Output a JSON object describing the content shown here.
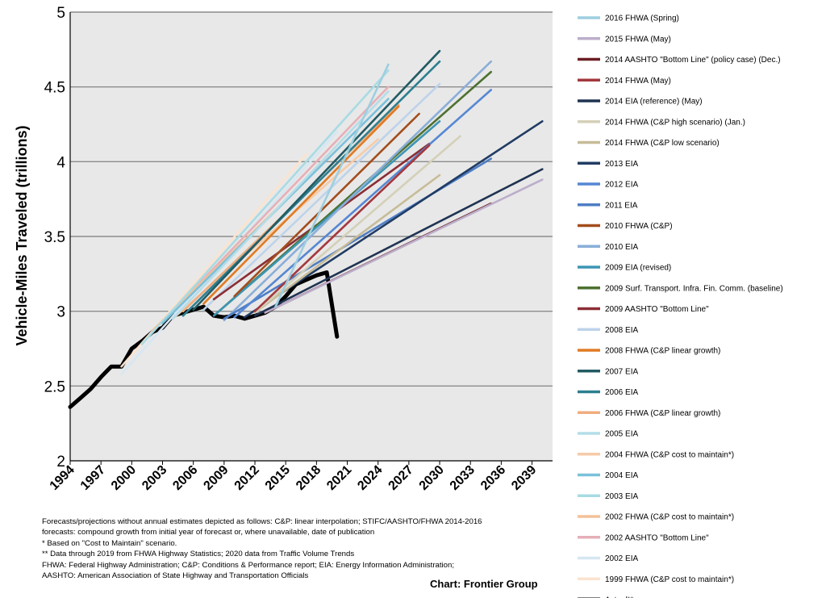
{
  "chart_data": {
    "type": "line",
    "title": "",
    "ylabel": "Vehicle-Miles Traveled (trillions)",
    "xlabel": "",
    "xlim": [
      1994,
      2041
    ],
    "ylim": [
      2,
      5
    ],
    "yticks": [
      "2",
      "2.5",
      "3",
      "3.5",
      "4",
      "4.5",
      "5"
    ],
    "xticks": [
      "1994",
      "1997",
      "2000",
      "2003",
      "2006",
      "2009",
      "2012",
      "2015",
      "2018",
      "2021",
      "2024",
      "2027",
      "2030",
      "2033",
      "2036",
      "2039"
    ],
    "grid": "horizontal",
    "legend_position": "right",
    "series": [
      {
        "name": "2016 FHWA (Spring)",
        "color": "#9dcfe0",
        "x": [
          2014,
          2025
        ],
        "y": [
          3.03,
          4.65
        ]
      },
      {
        "name": "2015 FHWA (May)",
        "color": "#bcaecb",
        "x": [
          2013,
          2040
        ],
        "y": [
          2.99,
          3.88
        ]
      },
      {
        "name": "2014 AASHTO \"Bottom Line\" (policy case) (Dec.)",
        "color": "#6b1e24",
        "x": [
          2013,
          2035
        ],
        "y": [
          2.99,
          3.72
        ]
      },
      {
        "name": "2014 FHWA (May)",
        "color": "#a3383e",
        "x": [
          2012,
          2029
        ],
        "y": [
          3.0,
          4.11
        ]
      },
      {
        "name": "2014 EIA (reference) (May)",
        "color": "#1f3352",
        "x": [
          2012,
          2040
        ],
        "y": [
          2.97,
          3.95
        ]
      },
      {
        "name": "2014 FHWA (C&P high scenario) (Jan.)",
        "color": "#d4d0b8",
        "x": [
          2012,
          2032
        ],
        "y": [
          2.99,
          4.17
        ]
      },
      {
        "name": "2014 FHWA (C&P low scenario)",
        "color": "#c7bc98",
        "x": [
          2012,
          2030
        ],
        "y": [
          2.99,
          3.91
        ]
      },
      {
        "name": "2013 EIA",
        "color": "#213c64",
        "x": [
          2011,
          2040
        ],
        "y": [
          2.96,
          4.27
        ]
      },
      {
        "name": "2012 EIA",
        "color": "#5687d3",
        "x": [
          2010,
          2035
        ],
        "y": [
          2.96,
          4.48
        ]
      },
      {
        "name": "2011 EIA",
        "color": "#4f7ec4",
        "x": [
          2009,
          2035
        ],
        "y": [
          2.95,
          4.02
        ]
      },
      {
        "name": "2010 FHWA (C&P)",
        "color": "#a34d1d",
        "x": [
          2010,
          2028
        ],
        "y": [
          3.1,
          4.32
        ]
      },
      {
        "name": "2010 EIA",
        "color": "#8aaed8",
        "x": [
          2009,
          2035
        ],
        "y": [
          2.94,
          4.67
        ]
      },
      {
        "name": "2009 EIA (revised)",
        "color": "#3d95b4",
        "x": [
          2008,
          2030
        ],
        "y": [
          2.97,
          4.27
        ]
      },
      {
        "name": "2009 Surf. Transport. Infra. Fin. Comm. (baseline)",
        "color": "#4e7130",
        "x": [
          2008,
          2035
        ],
        "y": [
          2.97,
          4.6
        ]
      },
      {
        "name": "2009 AASHTO \"Bottom Line\"",
        "color": "#8b2e35",
        "x": [
          2008,
          2029
        ],
        "y": [
          3.08,
          4.12
        ]
      },
      {
        "name": "2008 EIA",
        "color": "#bdd3ea",
        "x": [
          2007,
          2030
        ],
        "y": [
          3.01,
          4.52
        ]
      },
      {
        "name": "2008 FHWA (C&P linear growth)",
        "color": "#e07b24",
        "x": [
          2007,
          2026
        ],
        "y": [
          3.05,
          4.37
        ]
      },
      {
        "name": "2007 EIA",
        "color": "#235b63",
        "x": [
          2006,
          2030
        ],
        "y": [
          3.01,
          4.74
        ]
      },
      {
        "name": "2006 EIA",
        "color": "#2c7f90",
        "x": [
          2005,
          2030
        ],
        "y": [
          2.97,
          4.67
        ]
      },
      {
        "name": "2006 FHWA (C&P linear growth)",
        "color": "#f0ad80",
        "x": [
          2005,
          2026
        ],
        "y": [
          3.0,
          4.38
        ]
      },
      {
        "name": "2005 EIA",
        "color": "#b4dde8",
        "x": [
          2004,
          2025
        ],
        "y": [
          2.95,
          4.47
        ]
      },
      {
        "name": "2004 FHWA (C&P cost to maintain*)",
        "color": "#f6cba8",
        "x": [
          2004,
          2024
        ],
        "y": [
          2.95,
          4.15
        ]
      },
      {
        "name": "2004 EIA",
        "color": "#7bc0db",
        "x": [
          2003,
          2025
        ],
        "y": [
          2.92,
          4.42
        ]
      },
      {
        "name": "2003 EIA",
        "color": "#a8dbe3",
        "x": [
          2001,
          2025
        ],
        "y": [
          2.78,
          4.61
        ]
      },
      {
        "name": "2002 FHWA (C&P cost to maintain*)",
        "color": "#f3c199",
        "x": [
          2002,
          2020
        ],
        "y": [
          2.87,
          4.08
        ]
      },
      {
        "name": "2002 AASHTO \"Bottom Line\"",
        "color": "#e6b0b8",
        "x": [
          2002,
          2025
        ],
        "y": [
          2.86,
          4.5
        ]
      },
      {
        "name": "2002 EIA",
        "color": "#d6e7f3",
        "x": [
          1999,
          2020
        ],
        "y": [
          2.58,
          4.2
        ]
      },
      {
        "name": "1999 FHWA (C&P cost to maintain*)",
        "color": "#fbe3cf",
        "x": [
          1999,
          2017
        ],
        "y": [
          2.63,
          4.05
        ]
      },
      {
        "name": "Actual**",
        "color": "#000000",
        "x": [
          1994,
          1995,
          1996,
          1997,
          1998,
          1999,
          2000,
          2001,
          2002,
          2003,
          2004,
          2005,
          2006,
          2007,
          2008,
          2009,
          2010,
          2011,
          2012,
          2013,
          2014,
          2015,
          2016,
          2017,
          2018,
          2019,
          2020
        ],
        "y": [
          2.36,
          2.42,
          2.48,
          2.56,
          2.63,
          2.63,
          2.75,
          2.8,
          2.86,
          2.89,
          2.97,
          2.99,
          3.01,
          3.03,
          2.97,
          2.96,
          2.97,
          2.95,
          2.97,
          2.99,
          3.03,
          3.1,
          3.18,
          3.21,
          3.24,
          3.26,
          2.83
        ]
      }
    ]
  },
  "footnotes": [
    "Forecasts/projections without annual estimates depicted as follows: C&P: linear interpolation;  STIFC/AASHTO/FHWA 2014-2016",
    "forecasts: compound growth from initial year of forecast or, where unavailable, date of publication",
    "* Based on \"Cost to Maintain\" scenario.",
    "** Data through 2019 from FHWA Highway Statistics; 2020 data from Traffic Volume Trends",
    "FHWA: Federal Highway Administration; C&P: Conditions & Performance report; EIA: Energy Information Administration;",
    "AASHTO: American Association of State Highway and Transportation Officials"
  ],
  "credit": "Chart: Frontier Group"
}
